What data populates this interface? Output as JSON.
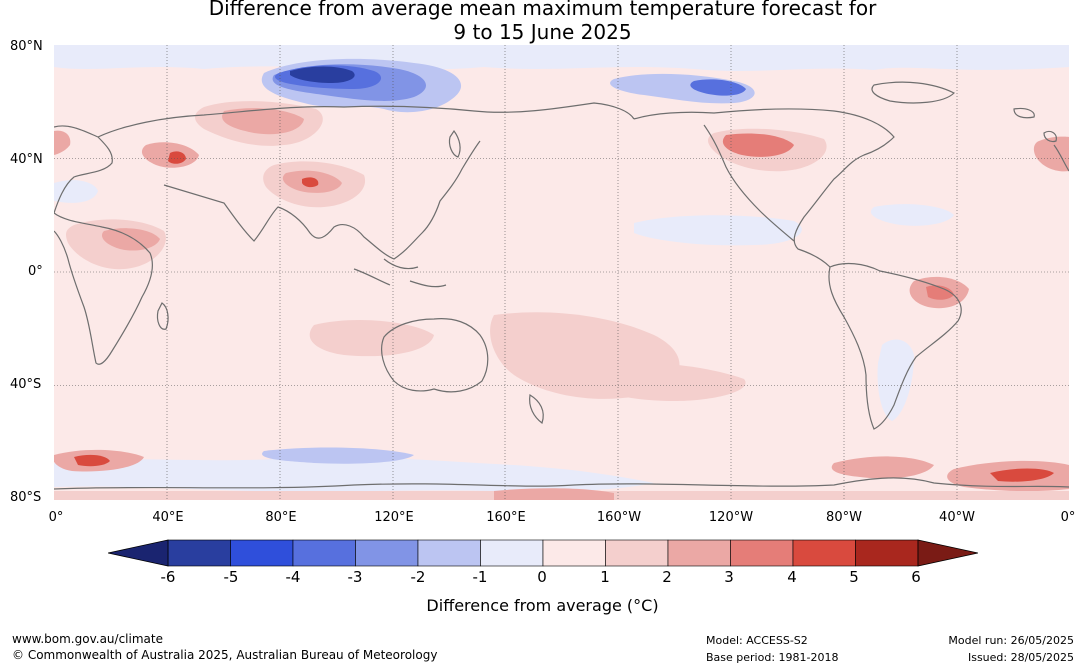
{
  "title": {
    "line1": "Difference from average mean maximum temperature forecast for",
    "line2": "9 to 15 June 2025"
  },
  "map": {
    "lat_labels": [
      "80°N",
      "40°N",
      "0°",
      "40°S",
      "80°S"
    ],
    "lon_labels": [
      "0°",
      "40°E",
      "80°E",
      "120°E",
      "160°E",
      "160°W",
      "120°W",
      "80°W",
      "40°W",
      "0°"
    ],
    "land_outline_color": "#6e6e6e",
    "ocean_base_anomaly": 0.5
  },
  "colorbar": {
    "ticks": [
      "-6",
      "-5",
      "-4",
      "-3",
      "-2",
      "-1",
      "0",
      "1",
      "2",
      "3",
      "4",
      "5",
      "6"
    ],
    "label": "Difference from average (°C)",
    "colors": [
      "#293e9f",
      "#2f4fdb",
      "#5770de",
      "#8194e6",
      "#bcc5f2",
      "#e8ebfa",
      "#fce9e8",
      "#f4cfcd",
      "#eba8a5",
      "#e57d78",
      "#d94a3e",
      "#a9271e"
    ],
    "under_color": "#1a2470",
    "over_color": "#7a1b15"
  },
  "footer": {
    "url": "www.bom.gov.au/climate",
    "copyright": "© Commonwealth of Australia 2025, Australian Bureau of Meteorology",
    "model": "Model: ACCESS-S2",
    "base_period": "Base period: 1981-2018",
    "model_run": "Model run: 26/05/2025",
    "issued": "Issued: 28/05/2025"
  }
}
